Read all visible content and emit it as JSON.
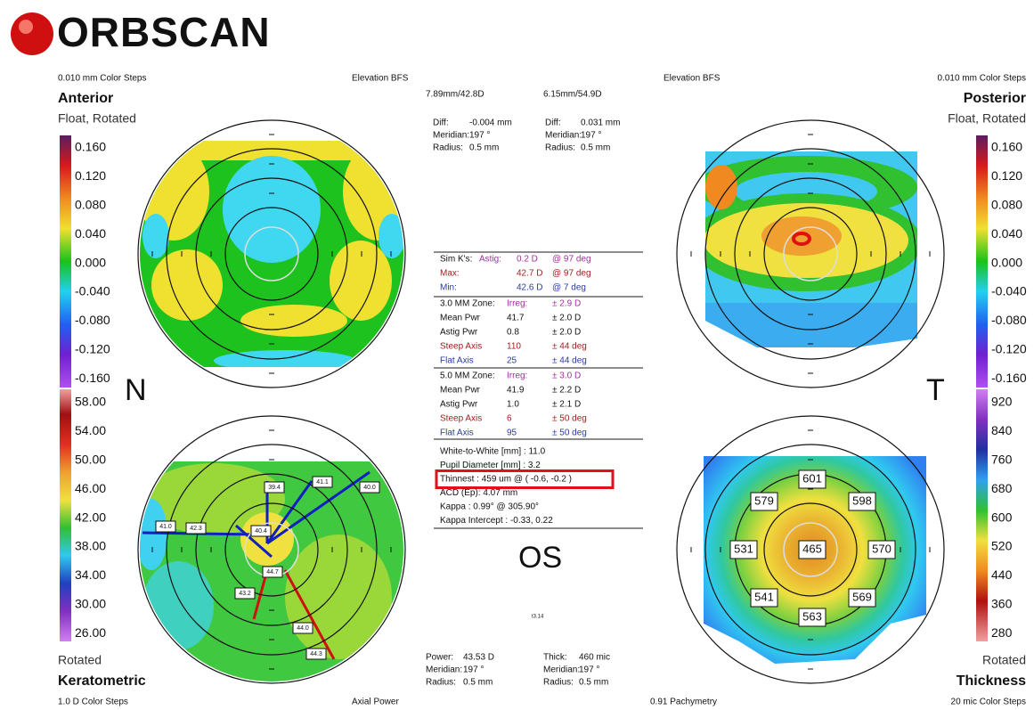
{
  "header": {
    "logo": "ORBSCAN"
  },
  "anterior": {
    "steps": "0.010 mm Color Steps",
    "map": "Elevation BFS",
    "title": "Anterior",
    "subtitle": "Float, Rotated",
    "scale": [
      "0.160",
      "0.120",
      "0.080",
      "0.040",
      "0.000",
      "-0.040",
      "-0.080",
      "-0.120",
      "-0.160"
    ]
  },
  "posterior": {
    "steps": "0.010 mm Color Steps",
    "map": "Elevation BFS",
    "title": "Posterior",
    "subtitle": "Float, Rotated",
    "scale": [
      "0.160",
      "0.120",
      "0.080",
      "0.040",
      "0.000",
      "-0.040",
      "-0.080",
      "-0.120",
      "-0.160"
    ]
  },
  "keratometric": {
    "subtitle": "Rotated",
    "title": "Keratometric",
    "steps": "1.0 D Color Steps",
    "map": "Axial Power",
    "scale": [
      "58.00",
      "54.00",
      "50.00",
      "46.00",
      "42.00",
      "38.00",
      "34.00",
      "30.00",
      "26.00"
    ],
    "labels": [
      "39.4",
      "41.1",
      "40.0",
      "41.0",
      "42.3",
      "40.4",
      "44.7",
      "43.2",
      "44.0",
      "44.3"
    ]
  },
  "thickness": {
    "subtitle": "Rotated",
    "title": "Thickness",
    "steps": "20 mic Color Steps",
    "map": "0.91 Pachymetry",
    "scale": [
      "920",
      "840",
      "760",
      "680",
      "600",
      "520",
      "440",
      "360",
      "280"
    ],
    "labels": [
      "601",
      "579",
      "598",
      "531",
      "465",
      "570",
      "541",
      "569",
      "563"
    ]
  },
  "side": {
    "left": "N",
    "right": "T"
  },
  "eye": "OS",
  "version": "t3.14",
  "center": {
    "k_top": [
      "7.89mm/42.8D",
      "6.15mm/54.9D"
    ],
    "diff_left": [
      [
        "Diff:",
        "-0.004 mm"
      ],
      [
        "Meridian:",
        "197 °"
      ],
      [
        "Radius:",
        "0.5 mm"
      ]
    ],
    "diff_right": [
      [
        "Diff:",
        "0.031 mm"
      ],
      [
        "Meridian:",
        "197 °"
      ],
      [
        "Radius:",
        "0.5 mm"
      ]
    ],
    "sim_k": {
      "label": "Sim K's:",
      "rows": [
        {
          "key": "Astig:",
          "value": "0.2 D",
          "note": "@ 97 deg",
          "color": "#a0309c"
        },
        {
          "key": "Max:",
          "value": "42.7 D",
          "note": "@ 97 deg",
          "color": "#a02020"
        },
        {
          "key": "Min:",
          "value": "42.6 D",
          "note": "@ 7 deg",
          "color": "#2a3aa0"
        }
      ]
    },
    "zones": [
      {
        "label": "3.0 MM Zone:",
        "irreg_key": "Irreg:",
        "irreg": "± 2.9 D",
        "rows": [
          {
            "key": "Mean Pwr",
            "value": "41.7",
            "note": "± 2.0 D",
            "color": "#111111"
          },
          {
            "key": "Astig Pwr",
            "value": "0.8",
            "note": "± 2.0 D",
            "color": "#111111"
          },
          {
            "key": "Steep Axis",
            "value": "110",
            "note": "± 44 deg",
            "color": "#a02020"
          },
          {
            "key": "Flat Axis",
            "value": "25",
            "note": "± 44 deg",
            "color": "#2a3aa0"
          }
        ]
      },
      {
        "label": "5.0 MM Zone:",
        "irreg_key": "Irreg:",
        "irreg": "± 3.0 D",
        "rows": [
          {
            "key": "Mean Pwr",
            "value": "41.9",
            "note": "± 2.2 D",
            "color": "#111111"
          },
          {
            "key": "Astig Pwr",
            "value": "1.0",
            "note": "± 2.1 D",
            "color": "#111111"
          },
          {
            "key": "Steep Axis",
            "value": "6",
            "note": "± 50 deg",
            "color": "#a02020"
          },
          {
            "key": "Flat Axis",
            "value": "95",
            "note": "± 50 deg",
            "color": "#2a3aa0"
          }
        ]
      }
    ],
    "other": [
      "White-to-White [mm] : 11.0",
      "Pupil Diameter [mm] : 3.2",
      "Thinnest : 459 um @ ( -0.6, -0.2 )",
      "ACD (Ep): 4.07 mm",
      "Kappa : 0.99° @ 305.90°",
      "Kappa Intercept : -0.33, 0.22"
    ],
    "highlight": 2,
    "bottom_left": [
      [
        "Power:",
        "43.53 D"
      ],
      [
        "Meridian:",
        "197 °"
      ],
      [
        "Radius:",
        "0.5 mm"
      ]
    ],
    "bottom_right": [
      [
        "Thick:",
        "460 mic"
      ],
      [
        "Meridian:",
        "197 °"
      ],
      [
        "Radius:",
        "0.5 mm"
      ]
    ]
  }
}
